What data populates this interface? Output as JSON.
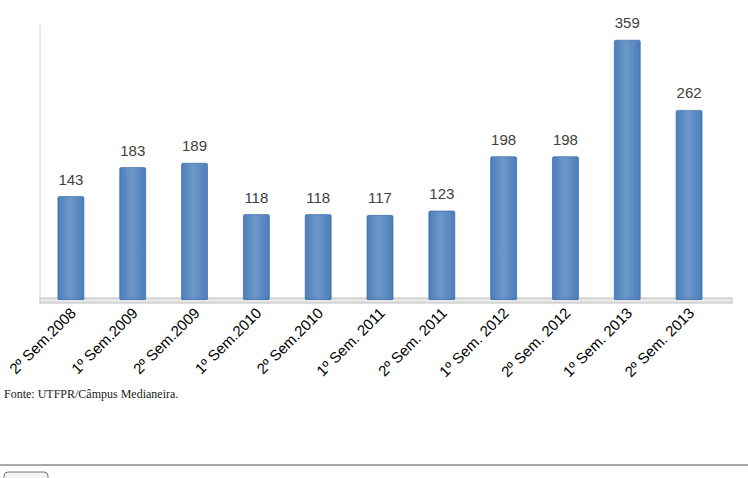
{
  "chart_data": {
    "type": "bar",
    "categories": [
      "2º Sem.2008",
      "1º Sem.2009",
      "2º Sem.2009",
      "1º Sem.2010",
      "2º Sem.2010",
      "1º Sem. 2011",
      "2º Sem. 2011",
      "1º Sem. 2012",
      "2º Sem. 2012",
      "1º Sem. 2013",
      "2º Sem. 2013"
    ],
    "values": [
      143,
      183,
      189,
      118,
      118,
      117,
      123,
      198,
      198,
      359,
      262
    ],
    "color": "#4a7ebb",
    "ylim": [
      0,
      380
    ],
    "yticks": [],
    "grid": false,
    "data_labels": true,
    "tick_labels": "x",
    "source": "Fonte: UTFPR/Câmpus Medianeira."
  }
}
